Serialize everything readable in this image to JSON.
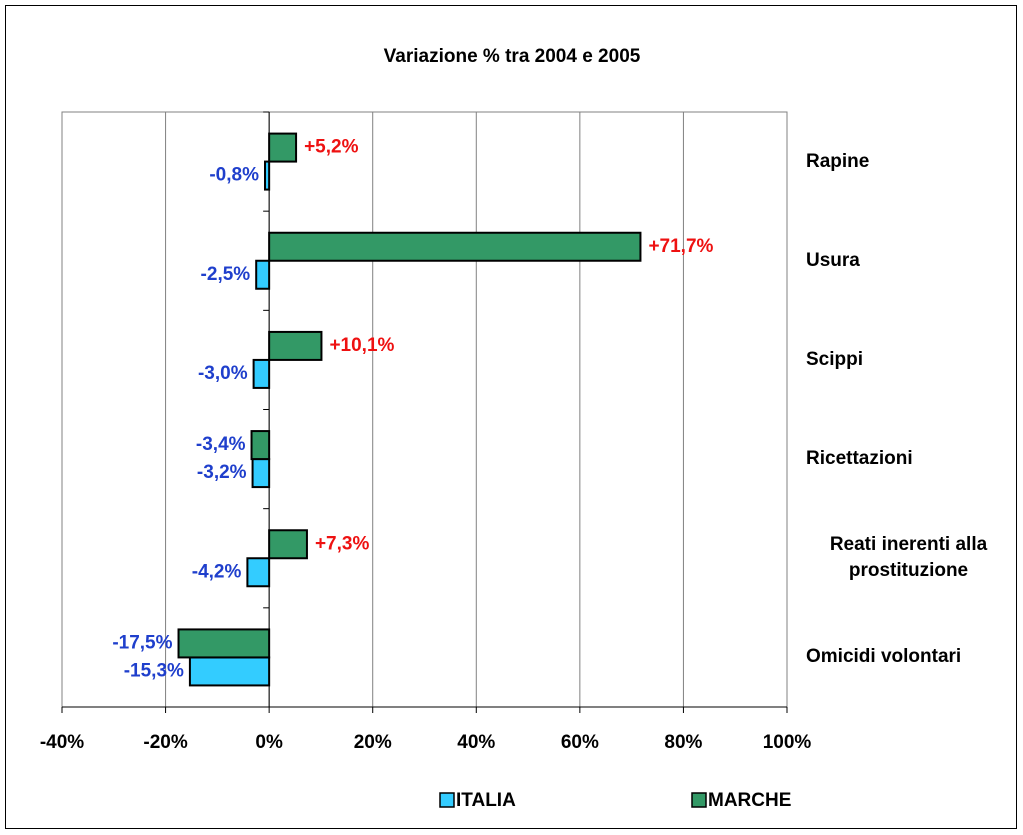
{
  "chart_data": {
    "type": "bar",
    "orientation": "horizontal",
    "title": "Variazione % tra 2004 e 2005",
    "categories": [
      "Rapine",
      "Usura",
      "Scippi",
      "Ricettazioni",
      "Reati inerenti alla prostituzione",
      "Omicidi volontari"
    ],
    "series": [
      {
        "name": "ITALIA",
        "color": "#33ccff",
        "values": [
          -0.8,
          -2.5,
          -3.0,
          -3.2,
          -4.2,
          -15.3
        ],
        "value_labels": [
          "-0,8%",
          "-2,5%",
          "-3,0%",
          "-3,2%",
          "-4,2%",
          "-15,3%"
        ]
      },
      {
        "name": "MARCHE",
        "color": "#339966",
        "values": [
          5.2,
          71.7,
          10.1,
          -3.4,
          7.3,
          -17.5
        ],
        "value_labels": [
          "+5,2%",
          "+71,7%",
          "+10,1%",
          "-3,4%",
          "+7,3%",
          "-17,5%"
        ]
      }
    ],
    "xlim": [
      -40,
      100
    ],
    "xticks": [
      {
        "value": -40,
        "label": "-40%"
      },
      {
        "value": -20,
        "label": "-20%"
      },
      {
        "value": 0,
        "label": "0%"
      },
      {
        "value": 20,
        "label": "20%"
      },
      {
        "value": 40,
        "label": "40%"
      },
      {
        "value": 60,
        "label": "60%"
      },
      {
        "value": 80,
        "label": "80%"
      },
      {
        "value": 100,
        "label": "100%"
      }
    ],
    "grid": true,
    "legend": "bottom"
  }
}
